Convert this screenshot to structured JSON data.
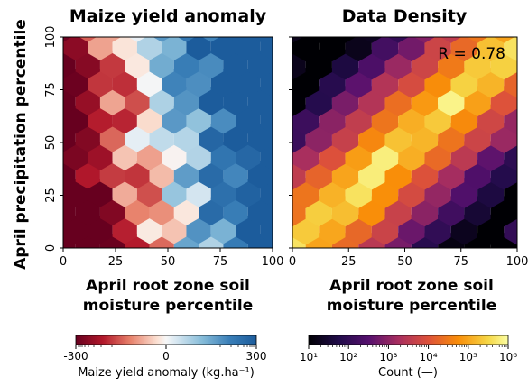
{
  "chart_data": [
    {
      "type": "heatmap",
      "title": "Maize yield anomaly",
      "xlabel": [
        "April root zone soil",
        "moisture percentile"
      ],
      "ylabel": "April precipitation percentile",
      "xlim": [
        0,
        100
      ],
      "ylim": [
        0,
        100
      ],
      "xticks": [
        "0",
        "25",
        "50",
        "75",
        "100"
      ],
      "yticks": [
        "0",
        "25",
        "50",
        "75",
        "100"
      ],
      "grid": false,
      "colorbar": {
        "label": "Maize yield anomaly (kg.ha⁻¹)",
        "ticks": [
          "-300",
          "0",
          "300"
        ],
        "range": [
          -300,
          300
        ],
        "scale": "symlog",
        "colormap": "RdBu (red negative, blue positive)"
      },
      "pattern": "hexbin; mean yield anomaly per bin, negative (red) at low soil moisture, positive (blue) at high soil moisture"
    },
    {
      "type": "heatmap",
      "title": "Data Density",
      "annotation": "R = 0.78",
      "xlabel": [
        "April root zone soil",
        "moisture percentile"
      ],
      "xlim": [
        0,
        100
      ],
      "ylim": [
        0,
        100
      ],
      "xticks": [
        "0",
        "25",
        "50",
        "75",
        "100"
      ],
      "grid": false,
      "colorbar": {
        "label": "Count (—)",
        "ticks": [
          "10¹",
          "10²",
          "10³",
          "10⁴",
          "10⁵",
          "10⁶"
        ],
        "range": [
          10,
          1000000
        ],
        "scale": "log",
        "colormap": "inferno"
      },
      "pattern": "hexbin; counts highest along the diagonal where soil moisture percentile ≈ precipitation percentile"
    }
  ]
}
